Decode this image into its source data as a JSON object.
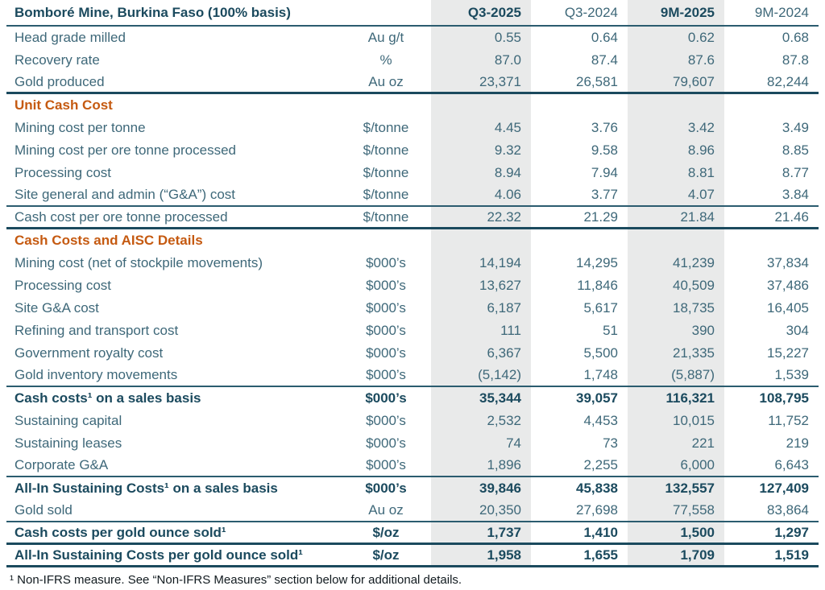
{
  "table": {
    "title": "Bomboré Mine, Burkina Faso (100% basis)",
    "columns": [
      {
        "label": "Q3-2025",
        "bold": true,
        "shaded": true
      },
      {
        "label": "Q3-2024",
        "bold": false,
        "shaded": false
      },
      {
        "label": "9M-2025",
        "bold": true,
        "shaded": true
      },
      {
        "label": "9M-2024",
        "bold": false,
        "shaded": false
      }
    ],
    "rows": [
      {
        "label": "Head grade milled",
        "unit": "Au g/t",
        "values": [
          "0.55",
          "0.64",
          "0.62",
          "0.68"
        ]
      },
      {
        "label": "Recovery rate",
        "unit": "%",
        "values": [
          "87.0",
          "87.4",
          "87.6",
          "87.8"
        ]
      },
      {
        "label": "Gold produced",
        "unit": "Au oz",
        "values": [
          "23,371",
          "26,581",
          "79,607",
          "82,244"
        ],
        "rule": "thick"
      },
      {
        "type": "section",
        "label": "Unit Cash Cost"
      },
      {
        "label": "Mining cost per tonne",
        "unit": "$/tonne",
        "values": [
          "4.45",
          "3.76",
          "3.42",
          "3.49"
        ]
      },
      {
        "label": "Mining cost per ore tonne processed",
        "unit": "$/tonne",
        "values": [
          "9.32",
          "9.58",
          "8.96",
          "8.85"
        ]
      },
      {
        "label": "Processing cost",
        "unit": "$/tonne",
        "values": [
          "8.94",
          "7.94",
          "8.81",
          "8.77"
        ]
      },
      {
        "label": "Site general and admin (“G&A”) cost",
        "unit": "$/tonne",
        "values": [
          "4.06",
          "3.77",
          "4.07",
          "3.84"
        ],
        "rule": "thin"
      },
      {
        "label": "Cash cost per ore tonne processed",
        "unit": "$/tonne",
        "values": [
          "22.32",
          "21.29",
          "21.84",
          "21.46"
        ],
        "rule": "thick"
      },
      {
        "type": "section",
        "label": "Cash Costs and AISC Details"
      },
      {
        "label": "Mining cost (net of stockpile movements)",
        "unit": "$000’s",
        "values": [
          "14,194",
          "14,295",
          "41,239",
          "37,834"
        ]
      },
      {
        "label": "Processing cost",
        "unit": "$000’s",
        "values": [
          "13,627",
          "11,846",
          "40,509",
          "37,486"
        ]
      },
      {
        "label": "Site G&A cost",
        "unit": "$000’s",
        "values": [
          "6,187",
          "5,617",
          "18,735",
          "16,405"
        ]
      },
      {
        "label": "Refining and transport cost",
        "unit": "$000’s",
        "values": [
          "111",
          "51",
          "390",
          "304"
        ]
      },
      {
        "label": "Government royalty cost",
        "unit": "$000’s",
        "values": [
          "6,367",
          "5,500",
          "21,335",
          "15,227"
        ]
      },
      {
        "label": "Gold inventory movements",
        "unit": "$000’s",
        "values": [
          "(5,142)",
          "1,748",
          "(5,887)",
          "1,539"
        ],
        "rule": "thin"
      },
      {
        "label": "Cash costs¹ on a sales basis",
        "unit": "$000’s",
        "values": [
          "35,344",
          "39,057",
          "116,321",
          "108,795"
        ],
        "bold": true
      },
      {
        "label": "Sustaining capital",
        "unit": "$000’s",
        "values": [
          "2,532",
          "4,453",
          "10,015",
          "11,752"
        ]
      },
      {
        "label": "Sustaining leases",
        "unit": "$000’s",
        "values": [
          "74",
          "73",
          "221",
          "219"
        ]
      },
      {
        "label": "Corporate G&A",
        "unit": "$000’s",
        "values": [
          "1,896",
          "2,255",
          "6,000",
          "6,643"
        ],
        "rule": "thin"
      },
      {
        "label": "All-In Sustaining Costs¹ on a sales basis",
        "unit": "$000’s",
        "values": [
          "39,846",
          "45,838",
          "132,557",
          "127,409"
        ],
        "bold": true
      },
      {
        "label": "Gold sold",
        "unit": "Au oz",
        "values": [
          "20,350",
          "27,698",
          "77,558",
          "83,864"
        ],
        "rule": "thin"
      },
      {
        "label": "Cash costs per gold ounce sold¹",
        "unit": "$/oz",
        "values": [
          "1,737",
          "1,410",
          "1,500",
          "1,297"
        ],
        "bold": true,
        "rule": "thick"
      },
      {
        "label": "All-In Sustaining Costs per gold ounce sold¹",
        "unit": "$/oz",
        "values": [
          "1,958",
          "1,655",
          "1,709",
          "1,519"
        ],
        "bold": true,
        "rule": "thick"
      }
    ]
  },
  "footnote": "¹ Non-IFRS measure.  See “Non-IFRS Measures” section below for additional details.",
  "colors": {
    "text": "#3E6879",
    "text_dark": "#1B4A5E",
    "section_header": "#C55A11",
    "shaded_column": "#E9EAEA",
    "rule": "#2B5C6F",
    "rule_dark": "#1B4A5E",
    "footnote_text": "#111A1F",
    "background": "#FFFFFF"
  }
}
